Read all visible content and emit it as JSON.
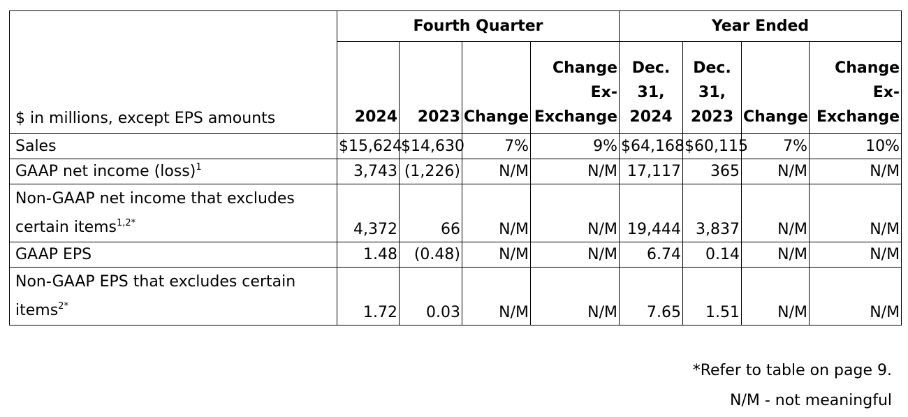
{
  "units_label": "$ in millions, except EPS amounts",
  "groups": {
    "fourth_quarter": "Fourth Quarter",
    "year_ended": "Year Ended"
  },
  "columns": {
    "fq_2024": "2024",
    "fq_2023": "2023",
    "fq_change": "Change",
    "fq_change_ex_l1": "Change",
    "fq_change_ex_l2": "Ex-",
    "fq_change_ex_l3": "Exchange",
    "ye_2024_l1": "Dec.",
    "ye_2024_l2": "31,",
    "ye_2024_l3": "2024",
    "ye_2023_l1": "Dec.",
    "ye_2023_l2": "31,",
    "ye_2023_l3": "2023",
    "ye_change": "Change",
    "ye_change_ex_l1": "Change",
    "ye_change_ex_l2": "Ex-",
    "ye_change_ex_l3": "Exchange"
  },
  "rows": [
    {
      "label": "Sales",
      "sup": "",
      "values": [
        "$15,624",
        "$14,630",
        "7%",
        "9%",
        "$64,168",
        "$60,115",
        "7%",
        "10%"
      ]
    },
    {
      "label": "GAAP net income (loss)",
      "sup": "1",
      "values": [
        "3,743",
        "(1,226)",
        "N/M",
        "N/M",
        "17,117",
        "365",
        "N/M",
        "N/M"
      ]
    },
    {
      "label_l1": "Non-GAAP net income that excludes",
      "label_l2": "certain items",
      "sup": "1,2*",
      "values": [
        "4,372",
        "66",
        "N/M",
        "N/M",
        "19,444",
        "3,837",
        "N/M",
        "N/M"
      ]
    },
    {
      "label": "GAAP EPS",
      "sup": "",
      "values": [
        "1.48",
        "(0.48)",
        "N/M",
        "N/M",
        "6.74",
        "0.14",
        "N/M",
        "N/M"
      ]
    },
    {
      "label_l1": "Non-GAAP EPS that excludes certain",
      "label_l2": "items",
      "sup": "2*",
      "values": [
        "1.72",
        "0.03",
        "N/M",
        "N/M",
        "7.65",
        "1.51",
        "N/M",
        "N/M"
      ]
    }
  ],
  "footnotes": {
    "refer": "*Refer to table on page 9.",
    "nm": "N/M - not meaningful"
  }
}
